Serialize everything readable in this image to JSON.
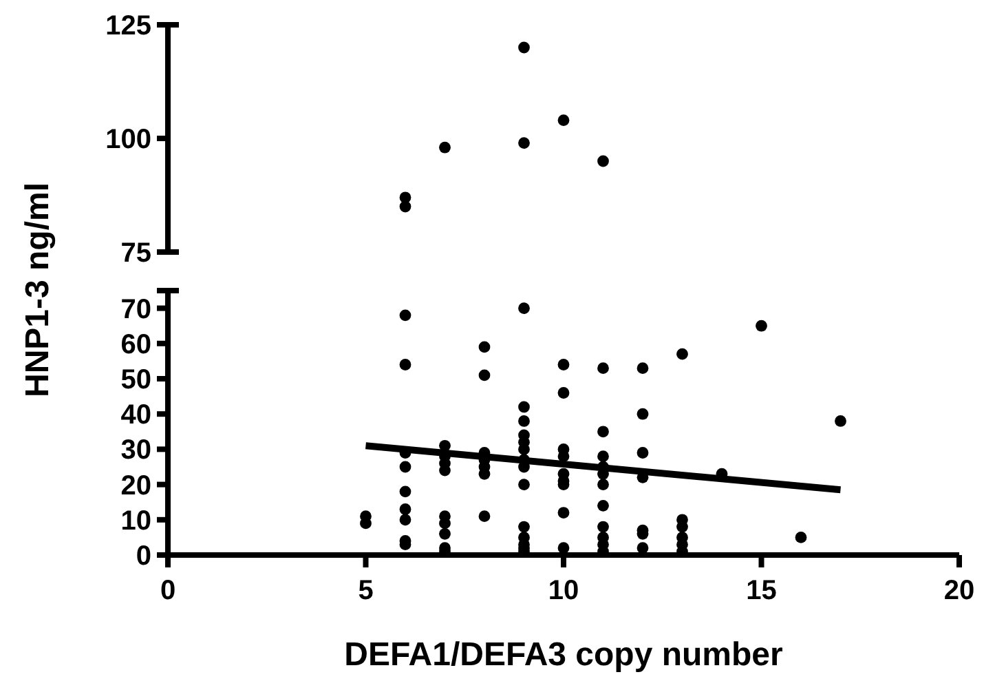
{
  "chart_data": [
    {
      "type": "scatter",
      "ylabel": "HNP1-3 ng/ml",
      "xlim": [
        0,
        20
      ],
      "ylim": [
        75,
        125
      ],
      "yticks": [
        75,
        100,
        125
      ],
      "tick_labels": "y",
      "marker": "circle",
      "series": [
        {
          "color": "#000000",
          "x": [
            6,
            6,
            7,
            9,
            9,
            10,
            11
          ],
          "values": [
            87,
            85,
            98,
            120,
            99,
            104,
            95
          ]
        }
      ]
    },
    {
      "type": "scatter",
      "xlabel": "DEFA1/DEFA3 copy number",
      "xlim": [
        0,
        20
      ],
      "xticks": [
        0,
        5,
        10,
        15,
        20
      ],
      "ylim": [
        0,
        75
      ],
      "yticks": [
        0,
        10,
        20,
        30,
        40,
        50,
        60,
        70
      ],
      "marker": "circle",
      "series": [
        {
          "color": "#000000",
          "x": [
            5,
            5,
            6,
            6,
            6,
            6,
            6,
            6,
            6,
            6,
            6,
            7,
            7,
            7,
            7,
            7,
            7,
            7,
            7,
            7,
            8,
            8,
            8,
            8,
            8,
            8,
            8,
            9,
            9,
            9,
            9,
            9,
            9,
            9,
            9,
            9,
            9,
            9,
            9,
            9,
            9,
            10,
            10,
            10,
            10,
            10,
            10,
            10,
            10,
            10,
            11,
            11,
            11,
            11,
            11,
            11,
            11,
            11,
            11,
            11,
            11,
            12,
            12,
            12,
            12,
            12,
            12,
            12,
            13,
            13,
            13,
            13,
            13,
            13,
            14,
            15,
            16,
            17
          ],
          "values": [
            11,
            9,
            68,
            54,
            29,
            25,
            18,
            13,
            10,
            4,
            3,
            31,
            28,
            26,
            24,
            11,
            9,
            6,
            2,
            1,
            59,
            51,
            29,
            27,
            25,
            23,
            11,
            70,
            42,
            38,
            34,
            32,
            30,
            27,
            25,
            20,
            8,
            5,
            3,
            2,
            1,
            54,
            46,
            30,
            28,
            23,
            21,
            20,
            12,
            2,
            53,
            35,
            28,
            25,
            23,
            20,
            14,
            8,
            5,
            3,
            1,
            53,
            40,
            29,
            22,
            7,
            6,
            2,
            57,
            10,
            8,
            5,
            3,
            1,
            23,
            65,
            5,
            38
          ]
        },
        {
          "type": "line",
          "marker": "none",
          "color": "#000000",
          "x": [
            5,
            17
          ],
          "values": [
            31,
            18.5
          ]
        }
      ]
    }
  ]
}
